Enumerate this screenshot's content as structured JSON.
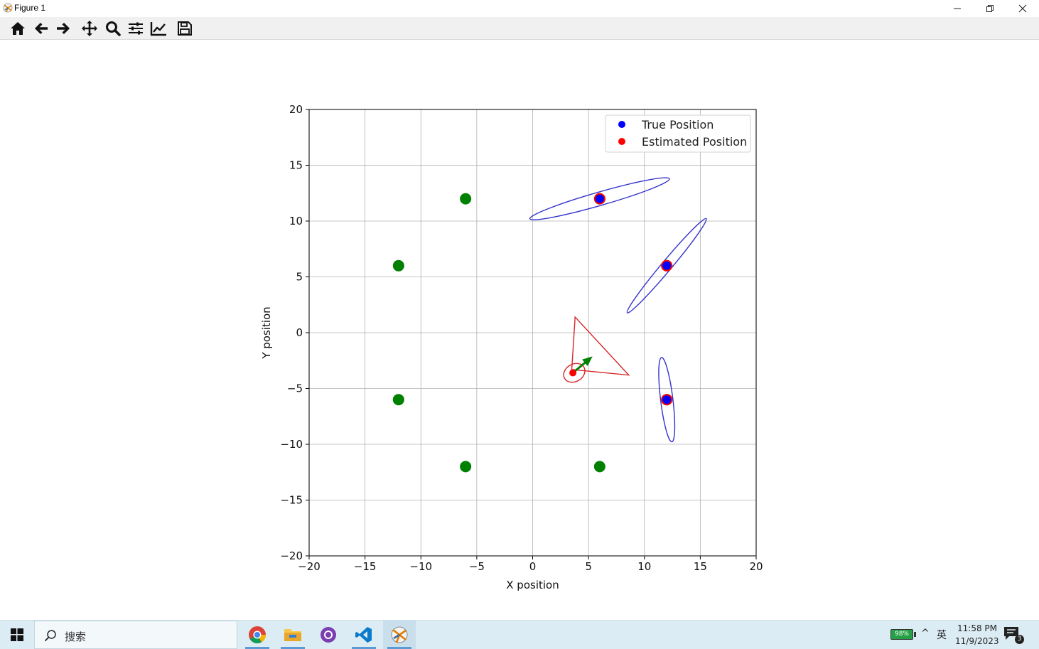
{
  "window": {
    "title": "Figure 1",
    "controls": [
      "minimize",
      "restore",
      "close"
    ]
  },
  "toolbar": {
    "buttons": [
      {
        "name": "home",
        "icon": "home-icon"
      },
      {
        "name": "back",
        "icon": "back-arrow-icon"
      },
      {
        "name": "forward",
        "icon": "forward-arrow-icon"
      },
      {
        "name": "pan",
        "icon": "pan-move-icon"
      },
      {
        "name": "zoom",
        "icon": "zoom-magnifier-icon"
      },
      {
        "name": "configure-subplots",
        "icon": "sliders-icon"
      },
      {
        "name": "edit-axis",
        "icon": "line-chart-icon"
      },
      {
        "name": "save",
        "icon": "floppy-disk-icon"
      }
    ]
  },
  "chart_data": {
    "type": "scatter",
    "xlabel": "X position",
    "ylabel": "Y position",
    "xlim": [
      -20,
      20
    ],
    "ylim": [
      -20,
      20
    ],
    "xticks": [
      -20,
      -15,
      -10,
      -5,
      0,
      5,
      10,
      15,
      20
    ],
    "yticks": [
      -20,
      -15,
      -10,
      -5,
      0,
      5,
      10,
      15,
      20
    ],
    "x_tick_labels": [
      "−20",
      "−15",
      "−10",
      "−5",
      "0",
      "5",
      "10",
      "15",
      "20"
    ],
    "y_tick_labels": [
      "−20",
      "−15",
      "−10",
      "−5",
      "0",
      "5",
      "10",
      "15",
      "20"
    ],
    "grid": true,
    "legend": {
      "position": "top-right",
      "entries": [
        {
          "label": "True Position",
          "color": "#0000ff"
        },
        {
          "label": "Estimated Position",
          "color": "#ff0000"
        }
      ]
    },
    "landmarks": {
      "color": "#008000",
      "points": [
        [
          -6,
          12
        ],
        [
          -12,
          6
        ],
        [
          -12,
          -6
        ],
        [
          -6,
          -12
        ],
        [
          6,
          -12
        ],
        [
          12,
          -6
        ],
        [
          12,
          6
        ],
        [
          6,
          12
        ]
      ]
    },
    "observed_landmarks": [
      {
        "x": 6,
        "y": 12,
        "est_x": 6,
        "est_y": 12,
        "ellipse": {
          "rx": 6.5,
          "ry": 0.6,
          "angle": 16
        }
      },
      {
        "x": 12,
        "y": 6,
        "est_x": 12,
        "est_y": 6,
        "ellipse": {
          "rx": 5.5,
          "ry": 0.45,
          "angle": 50
        }
      },
      {
        "x": 12,
        "y": -6,
        "est_x": 12,
        "est_y": -6,
        "ellipse": {
          "rx": 3.8,
          "ry": 0.55,
          "angle": 97
        }
      }
    ],
    "robot": {
      "est_x": 3.6,
      "est_y": -3.6,
      "color": "#ff0000",
      "heading_deg": 40,
      "arrow_color": "#008000",
      "triangle": [
        [
          3.5,
          -3.3
        ],
        [
          3.8,
          1.4
        ],
        [
          8.6,
          -3.8
        ]
      ],
      "ellipse": {
        "rx": 1.0,
        "ry": 1.0,
        "angle": 30
      }
    },
    "ellipse_color": "#3333cc"
  },
  "taskbar": {
    "search_placeholder": "搜索",
    "apps": [
      {
        "name": "chrome",
        "icon": "chrome-icon"
      },
      {
        "name": "file-explorer",
        "icon": "folder-icon"
      },
      {
        "name": "github-desktop",
        "icon": "github-desktop-icon"
      },
      {
        "name": "vscode",
        "icon": "vscode-icon"
      },
      {
        "name": "matplotlib-figure",
        "icon": "matplotlib-icon"
      }
    ],
    "battery": "98%",
    "ime": "英",
    "time": "11:58 PM",
    "date": "11/9/2023",
    "notifications": "3"
  }
}
